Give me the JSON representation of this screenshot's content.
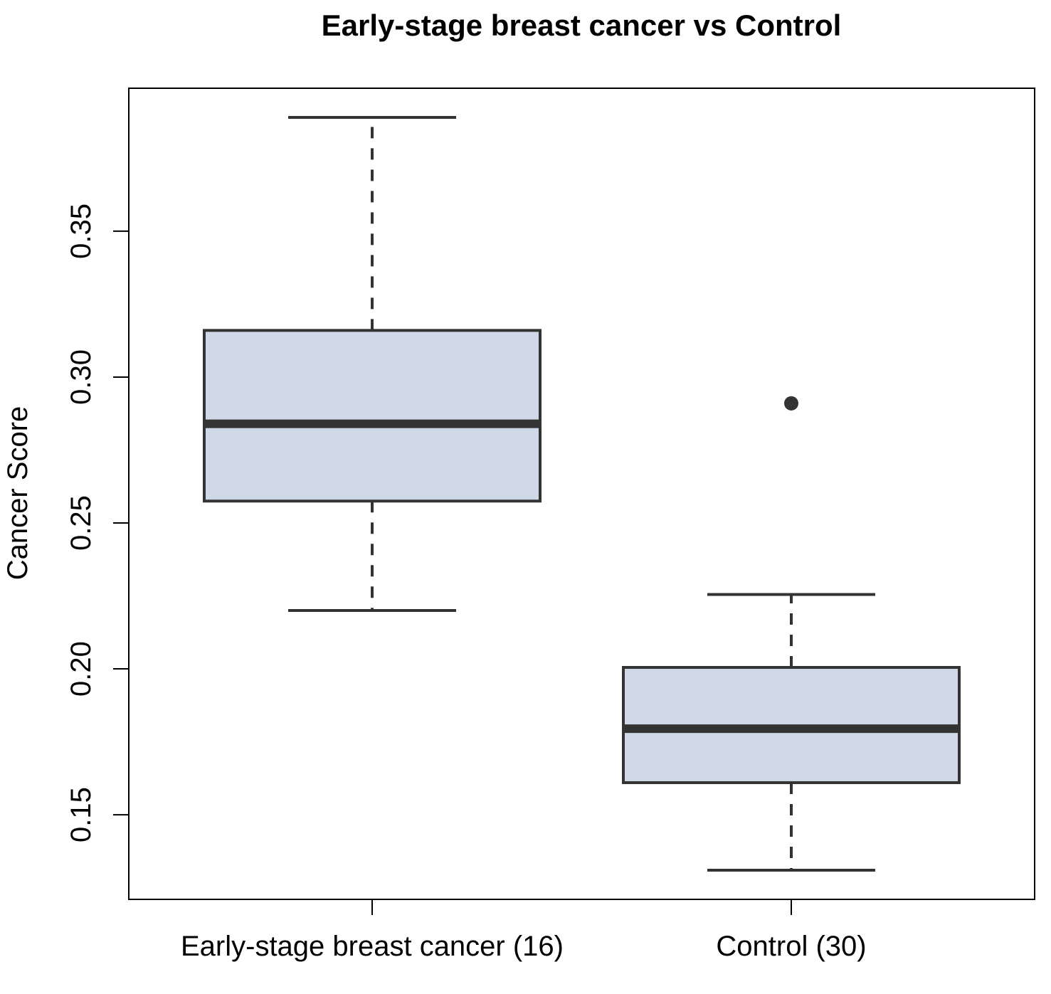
{
  "chart_data": {
    "type": "boxplot",
    "title": "Early-stage breast cancer vs Control",
    "xlabel": "",
    "ylabel": "Cancer Score",
    "ylim": [
      0.121,
      0.399
    ],
    "yticks": [
      0.15,
      0.2,
      0.25,
      0.3,
      0.35
    ],
    "ytick_labels": [
      "0.15",
      "0.20",
      "0.25",
      "0.30",
      "0.35"
    ],
    "grid": false,
    "colors": {
      "box_fill": "#cfd8e6",
      "box_stroke": "#333333",
      "axis": "#000000"
    },
    "categories": [
      "Early-stage breast cancer (16)",
      "Control (30)"
    ],
    "boxes": [
      {
        "label": "Early-stage breast cancer (16)",
        "whisker_low": 0.22,
        "q1": 0.2575,
        "median": 0.284,
        "q3": 0.316,
        "whisker_high": 0.389,
        "outliers": []
      },
      {
        "label": "Control (30)",
        "whisker_low": 0.131,
        "q1": 0.161,
        "median": 0.1795,
        "q3": 0.2005,
        "whisker_high": 0.2255,
        "outliers": [
          0.291
        ]
      }
    ]
  }
}
